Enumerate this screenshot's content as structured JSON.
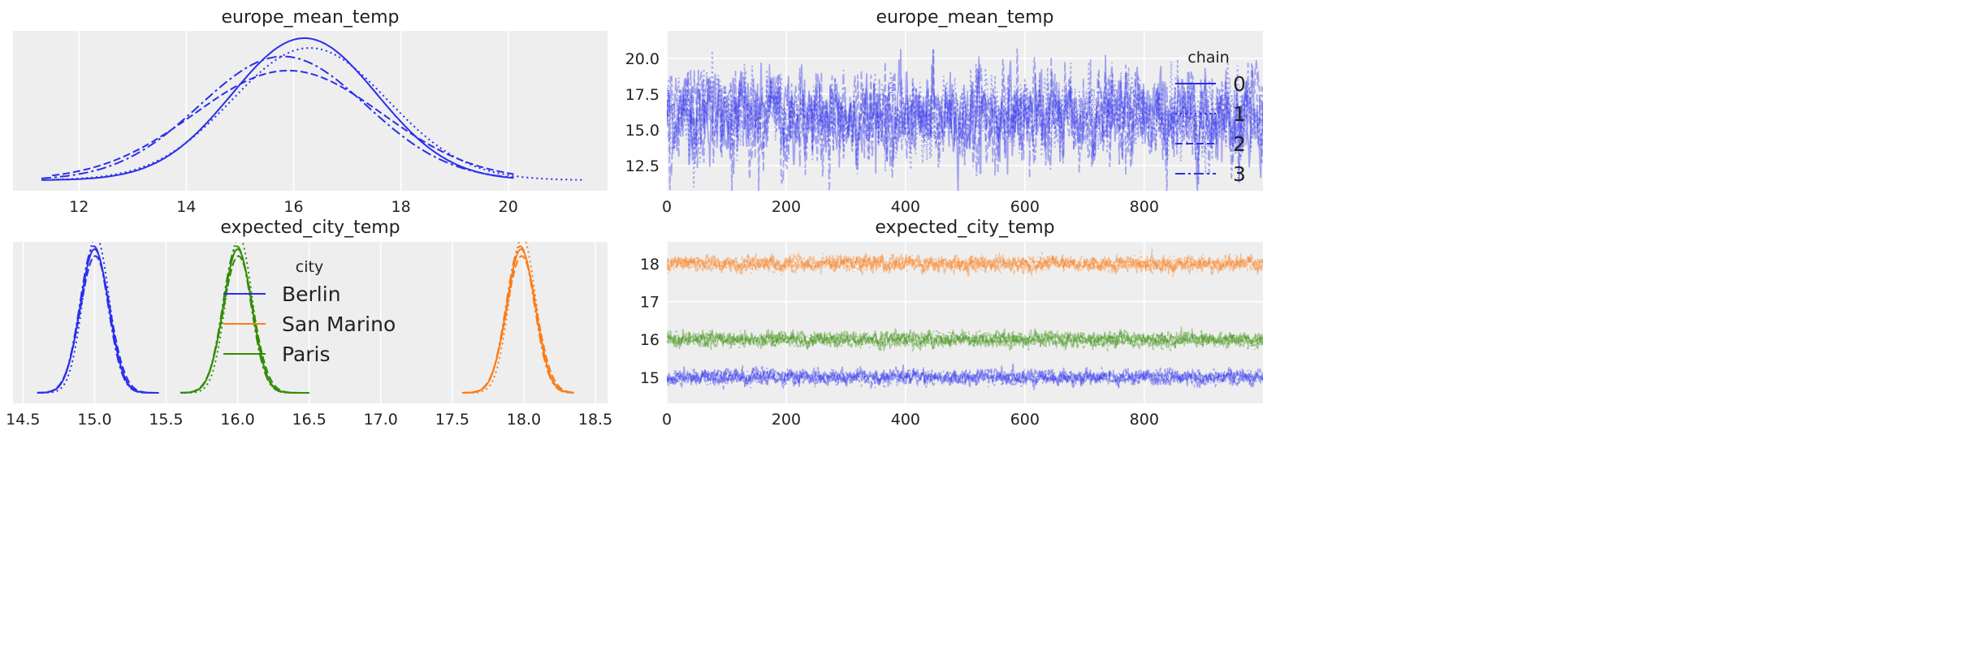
{
  "colors": {
    "blue": "#2a2eec",
    "orange": "#fa7c17",
    "green": "#328c06",
    "axes_bg": "#eeeeee",
    "grid": "#ffffff"
  },
  "chart_data": [
    {
      "id": "kde_europe",
      "type": "line",
      "title": "europe_mean_temp",
      "xlim": [
        10.77,
        21.85
      ],
      "xticks": [
        12,
        14,
        16,
        18,
        20
      ],
      "xtick_labels": [
        "12",
        "14",
        "16",
        "18",
        "20"
      ],
      "grid": true,
      "series": [
        {
          "name": "chain 0",
          "style": "solid",
          "color": "blue",
          "mean": 16.2,
          "sd": 1.35,
          "range": [
            11.3,
            20.1
          ]
        },
        {
          "name": "chain 1",
          "style": "dotted",
          "color": "blue",
          "mean": 16.3,
          "sd": 1.45,
          "range": [
            11.5,
            21.4
          ]
        },
        {
          "name": "chain 2",
          "style": "dashed",
          "color": "blue",
          "mean": 15.9,
          "sd": 1.75,
          "range": [
            11.5,
            20.1
          ]
        },
        {
          "name": "chain 3",
          "style": "dashdot",
          "color": "blue",
          "mean": 15.8,
          "sd": 1.55,
          "range": [
            11.3,
            20.1
          ]
        }
      ]
    },
    {
      "id": "trace_europe",
      "type": "line",
      "title": "europe_mean_temp",
      "xlim": [
        0,
        999
      ],
      "ylim": [
        10.74,
        21.93
      ],
      "xticks": [
        0,
        200,
        400,
        600,
        800
      ],
      "xtick_labels": [
        "0",
        "200",
        "400",
        "600",
        "800"
      ],
      "yticks": [
        12.5,
        15.0,
        17.5,
        20.0
      ],
      "ytick_labels": [
        "12.5",
        "15.0",
        "17.5",
        "20.0"
      ],
      "grid": true,
      "draws": 1000,
      "series": [
        {
          "name": "chain 0",
          "style": "solid",
          "color": "blue",
          "mean": 16.0,
          "sd": 1.5
        },
        {
          "name": "chain 1",
          "style": "dotted",
          "color": "blue",
          "mean": 16.1,
          "sd": 1.5
        },
        {
          "name": "chain 2",
          "style": "dashed",
          "color": "blue",
          "mean": 15.9,
          "sd": 1.6
        },
        {
          "name": "chain 3",
          "style": "dashdot",
          "color": "blue",
          "mean": 15.8,
          "sd": 1.5
        }
      ],
      "legend": {
        "title": "chain",
        "position": "right",
        "entries": [
          "0",
          "1",
          "2",
          "3"
        ]
      }
    },
    {
      "id": "kde_city",
      "type": "line",
      "title": "expected_city_temp",
      "xlim": [
        14.43,
        18.585
      ],
      "xticks": [
        14.5,
        15.0,
        15.5,
        16.0,
        16.5,
        17.0,
        17.5,
        18.0,
        18.5
      ],
      "xtick_labels": [
        "14.5",
        "15.0",
        "15.5",
        "16.0",
        "16.5",
        "17.0",
        "17.5",
        "18.0",
        "18.5"
      ],
      "grid": true,
      "series": [
        {
          "name": "Berlin",
          "color": "blue",
          "mean": 15.0,
          "sd": 0.1,
          "range": [
            14.6,
            15.45
          ]
        },
        {
          "name": "San Marino",
          "color": "orange",
          "mean": 17.98,
          "sd": 0.1,
          "range": [
            17.57,
            18.35
          ]
        },
        {
          "name": "Paris",
          "color": "green",
          "mean": 16.0,
          "sd": 0.1,
          "range": [
            15.6,
            16.5
          ]
        }
      ],
      "legend": {
        "title": "city",
        "position": "center",
        "entries": [
          "Berlin",
          "San Marino",
          "Paris"
        ]
      }
    },
    {
      "id": "trace_city",
      "type": "line",
      "title": "expected_city_temp",
      "xlim": [
        0,
        999
      ],
      "ylim": [
        14.31,
        18.58
      ],
      "xticks": [
        0,
        200,
        400,
        600,
        800
      ],
      "xtick_labels": [
        "0",
        "200",
        "400",
        "600",
        "800"
      ],
      "yticks": [
        15,
        16,
        17,
        18
      ],
      "ytick_labels": [
        "15",
        "16",
        "17",
        "18"
      ],
      "grid": true,
      "draws": 1000,
      "series": [
        {
          "name": "Berlin",
          "color": "blue",
          "mean": 15.0,
          "sd": 0.1
        },
        {
          "name": "San Marino",
          "color": "orange",
          "mean": 18.0,
          "sd": 0.1
        },
        {
          "name": "Paris",
          "color": "green",
          "mean": 16.0,
          "sd": 0.1
        }
      ]
    }
  ]
}
